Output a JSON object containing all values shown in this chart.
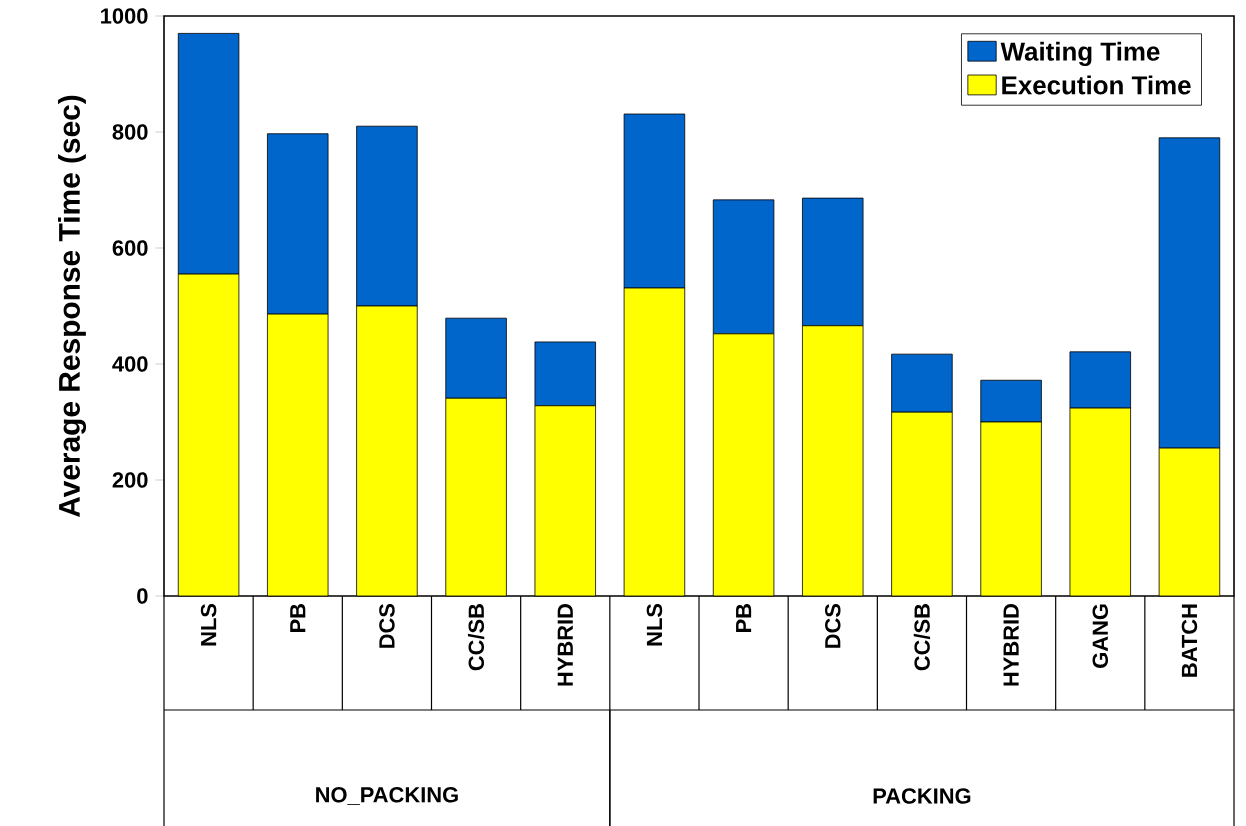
{
  "chart_data": {
    "type": "bar",
    "stacked": true,
    "ylabel": "Average Response Time (sec)",
    "categories": [
      "NLS",
      "PB",
      "DCS",
      "CC/SB",
      "HYBRID",
      "NLS",
      "PB",
      "DCS",
      "CC/SB",
      "HYBRID",
      "GANG",
      "BATCH"
    ],
    "series": [
      {
        "name": "Execution Time",
        "color": "#ffff00",
        "values": [
          555,
          486,
          500,
          341,
          328,
          531,
          452,
          466,
          317,
          300,
          324,
          255
        ]
      },
      {
        "name": "Waiting Time",
        "color": "#0066cc",
        "values": [
          415,
          311,
          310,
          138,
          110,
          300,
          231,
          220,
          100,
          72,
          97,
          535
        ]
      }
    ],
    "ylim": [
      0,
      1000
    ],
    "yticks": [
      0,
      200,
      400,
      600,
      800,
      1000
    ],
    "legend": "top right",
    "annotations": [
      "NO_PACKING",
      "PACKING"
    ]
  }
}
